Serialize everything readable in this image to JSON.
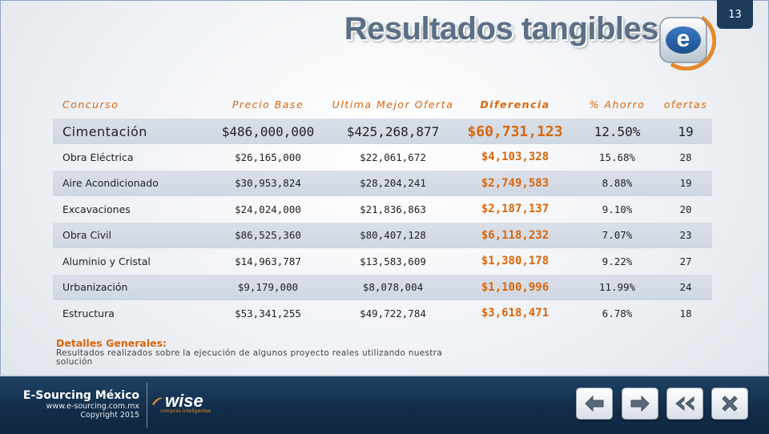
{
  "page_number": "13",
  "title": "Resultados tangibles",
  "table": {
    "headers": [
      "Concurso",
      "Precio Base",
      "Ultima Mejor Oferta",
      "Diferencia",
      "% Ahorro",
      "ofertas"
    ],
    "rows": [
      [
        "Cimentación",
        "$486,000,000",
        "$425,268,877",
        "$60,731,123",
        "12.50%",
        "19"
      ],
      [
        "Obra Eléctrica",
        "$26,165,000",
        "$22,061,672",
        "$4,103,328",
        "15.68%",
        "28"
      ],
      [
        "Aire Acondicionado",
        "$30,953,824",
        "$28,204,241",
        "$2,749,583",
        "8.88%",
        "19"
      ],
      [
        "Excavaciones",
        "$24,024,000",
        "$21,836,863",
        "$2,187,137",
        "9.10%",
        "20"
      ],
      [
        "Obra Civil",
        "$86,525,360",
        "$80,407,128",
        "$6,118,232",
        "7.07%",
        "23"
      ],
      [
        "Aluminio y Cristal",
        "$14,963,787",
        "$13,583,609",
        "$1,380,178",
        "9.22%",
        "27"
      ],
      [
        "Urbanización",
        "$9,179,000",
        "$8,078,004",
        "$1,100,996",
        "11.99%",
        "24"
      ],
      [
        "Estructura",
        "$53,341,255",
        "$49,722,784",
        "$3,618,471",
        "6.78%",
        "18"
      ]
    ]
  },
  "details": {
    "title": "Detalles Generales:",
    "text": "Resultados realizados sobre la ejecución de algunos  proyecto reales utilizando nuestra solución"
  },
  "footer": {
    "brand_name": "E-Sourcing México",
    "website": "www.e-sourcing.com.mx",
    "copyright": "Copyright 2015",
    "partner_logo": "wise",
    "partner_tagline": "compras inteligentes"
  },
  "nav_icons": [
    "arrow-left-icon",
    "arrow-right-icon",
    "double-arrow-left-icon",
    "close-icon"
  ],
  "colors": {
    "accent": "#d9660a",
    "footer": "#122c48",
    "title": "#5b6f86"
  }
}
